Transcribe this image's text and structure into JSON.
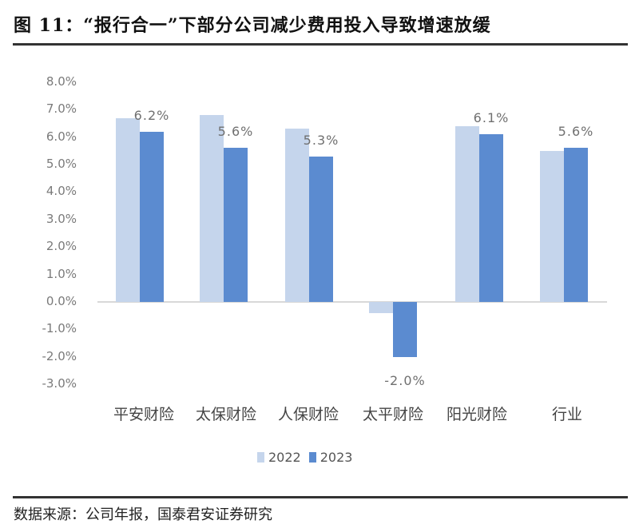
{
  "header": {
    "title": "图 11：“报行合一”下部分公司减少费用投入导致增速放缓"
  },
  "footer": {
    "source": "数据来源：公司年报，国泰君安证券研究"
  },
  "colors": {
    "series_2022": "#c5d5ec",
    "series_2023": "#5b8bd0"
  },
  "chart_data": {
    "type": "bar",
    "title": "“报行合一”下部分公司减少费用投入导致增速放缓",
    "xlabel": "",
    "ylabel": "",
    "categories": [
      "平安财险",
      "太保财险",
      "人保财险",
      "太平财险",
      "阳光财险",
      "行业"
    ],
    "series": [
      {
        "name": "2022",
        "values": [
          6.7,
          6.8,
          6.3,
          -0.4,
          6.4,
          5.5
        ]
      },
      {
        "name": "2023",
        "values": [
          6.2,
          5.6,
          5.3,
          -2.0,
          6.1,
          5.6
        ]
      }
    ],
    "data_labels": [
      "6.2%",
      "5.6%",
      "5.3%",
      "-2.0%",
      "6.1%",
      "5.6%"
    ],
    "yticks": [
      "8.0%",
      "7.0%",
      "6.0%",
      "5.0%",
      "4.0%",
      "3.0%",
      "2.0%",
      "1.0%",
      "0.0%",
      "-1.0%",
      "-2.0%",
      "-3.0%"
    ],
    "ylim": [
      -3.0,
      8.0
    ],
    "grid": false,
    "legend": {
      "position": "bottom",
      "entries": [
        "2022",
        "2023"
      ]
    },
    "unit": "%"
  }
}
